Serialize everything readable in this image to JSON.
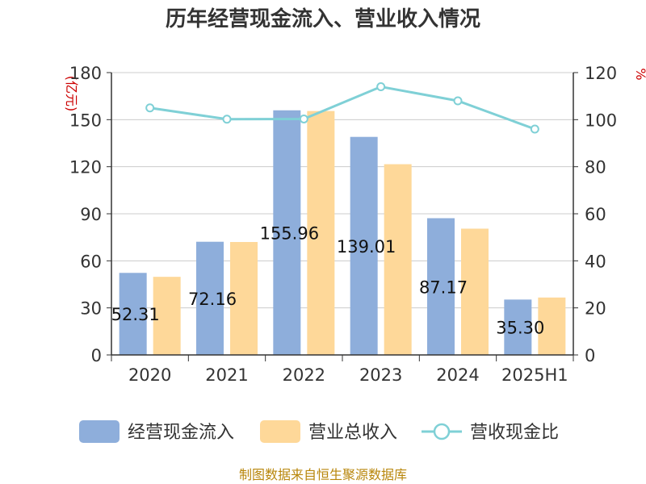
{
  "title": "历年经营现金流入、营业收入情况",
  "source": "制图数据来自恒生聚源数据库",
  "left_unit": "(亿元)",
  "right_unit": "%",
  "colors": {
    "cash": "#8eaedb",
    "revenue": "#fed899",
    "ratio": "#7fd0d6",
    "axis": "#333333",
    "grid": "#cccccc"
  },
  "chart_data": {
    "type": "bar",
    "categories": [
      "2020",
      "2021",
      "2022",
      "2023",
      "2024",
      "2025H1"
    ],
    "series": [
      {
        "name": "经营现金流入",
        "axis": "left",
        "values": [
          52.31,
          72.16,
          155.96,
          139.01,
          87.17,
          35.3
        ],
        "labels": [
          "52.31",
          "72.16",
          "155.96",
          "139.01",
          "87.17",
          "35.30"
        ]
      },
      {
        "name": "营业总收入",
        "axis": "left",
        "values": [
          49.8,
          72.0,
          155.5,
          121.6,
          80.5,
          36.6
        ]
      },
      {
        "name": "营收现金比",
        "axis": "right",
        "type": "line",
        "values": [
          105.0,
          100.2,
          100.3,
          114.0,
          108.0,
          96.0
        ]
      }
    ],
    "left_axis": {
      "ylim": [
        0,
        180
      ],
      "ticks": [
        0,
        30,
        60,
        90,
        120,
        150,
        180
      ]
    },
    "right_axis": {
      "ylim": [
        0,
        120
      ],
      "ticks": [
        0,
        20,
        40,
        60,
        80,
        100,
        120
      ]
    },
    "grid": true,
    "legend_position": "bottom"
  }
}
